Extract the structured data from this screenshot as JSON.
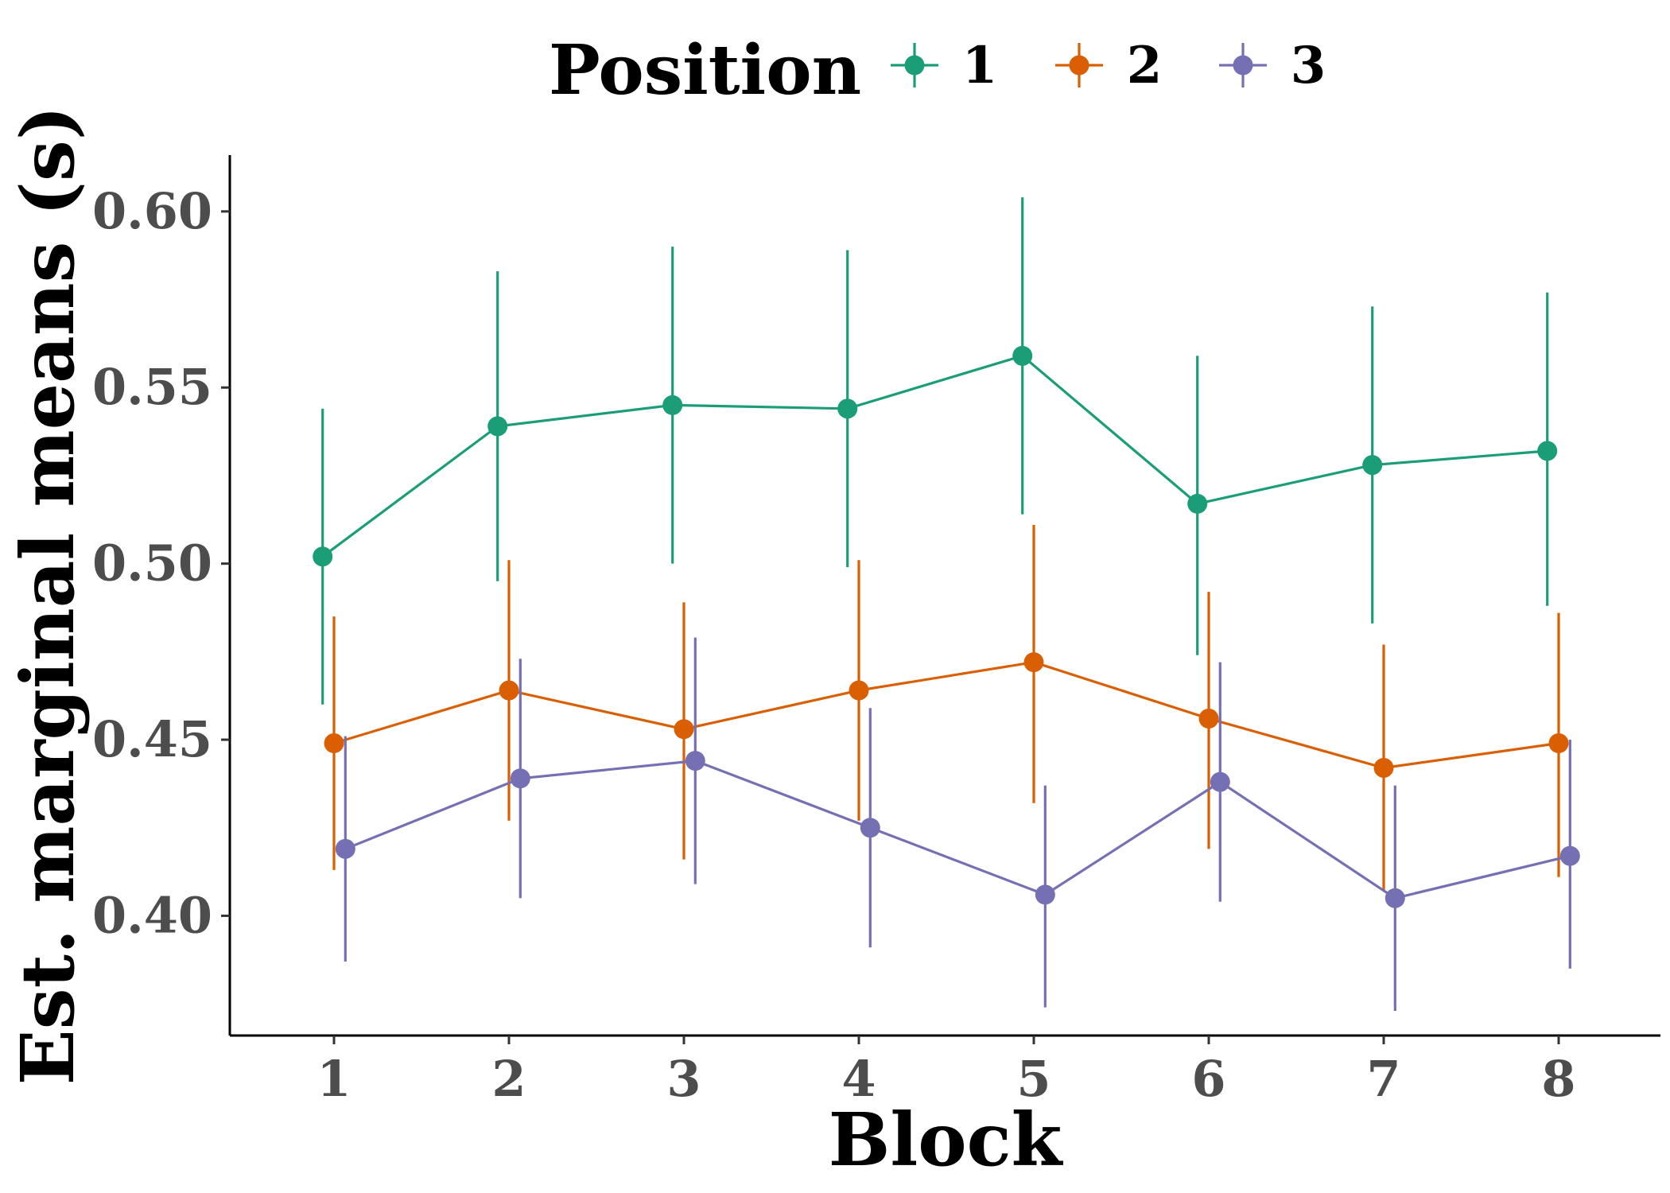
{
  "chart_data": {
    "type": "line",
    "xlabel": "Block",
    "ylabel": "Est. marginal means (s)",
    "x": [
      1,
      2,
      3,
      4,
      5,
      6,
      7,
      8
    ],
    "xticks": [
      "1",
      "2",
      "3",
      "4",
      "5",
      "6",
      "7",
      "8"
    ],
    "yticks": [
      "0.40",
      "0.45",
      "0.50",
      "0.55",
      "0.60"
    ],
    "ylim": [
      0.366,
      0.616
    ],
    "grid": false,
    "legend": {
      "title": "Position",
      "placement": "top",
      "entries": [
        "1",
        "2",
        "3"
      ]
    },
    "series": [
      {
        "name": "1",
        "color": "#1b9e77",
        "values": [
          0.502,
          0.539,
          0.545,
          0.544,
          0.559,
          0.517,
          0.528,
          0.532
        ],
        "lower": [
          0.46,
          0.495,
          0.5,
          0.499,
          0.514,
          0.474,
          0.483,
          0.488
        ],
        "upper": [
          0.544,
          0.583,
          0.59,
          0.589,
          0.604,
          0.559,
          0.573,
          0.577
        ]
      },
      {
        "name": "2",
        "color": "#d95f02",
        "values": [
          0.449,
          0.464,
          0.453,
          0.464,
          0.472,
          0.456,
          0.442,
          0.449
        ],
        "lower": [
          0.413,
          0.427,
          0.416,
          0.427,
          0.432,
          0.419,
          0.407,
          0.411
        ],
        "upper": [
          0.485,
          0.501,
          0.489,
          0.501,
          0.511,
          0.492,
          0.477,
          0.486
        ]
      },
      {
        "name": "3",
        "color": "#7570b3",
        "values": [
          0.419,
          0.439,
          0.444,
          0.425,
          0.406,
          0.438,
          0.405,
          0.417
        ],
        "lower": [
          0.387,
          0.405,
          0.409,
          0.391,
          0.374,
          0.404,
          0.373,
          0.385
        ],
        "upper": [
          0.451,
          0.473,
          0.479,
          0.459,
          0.437,
          0.472,
          0.437,
          0.45
        ]
      }
    ]
  }
}
